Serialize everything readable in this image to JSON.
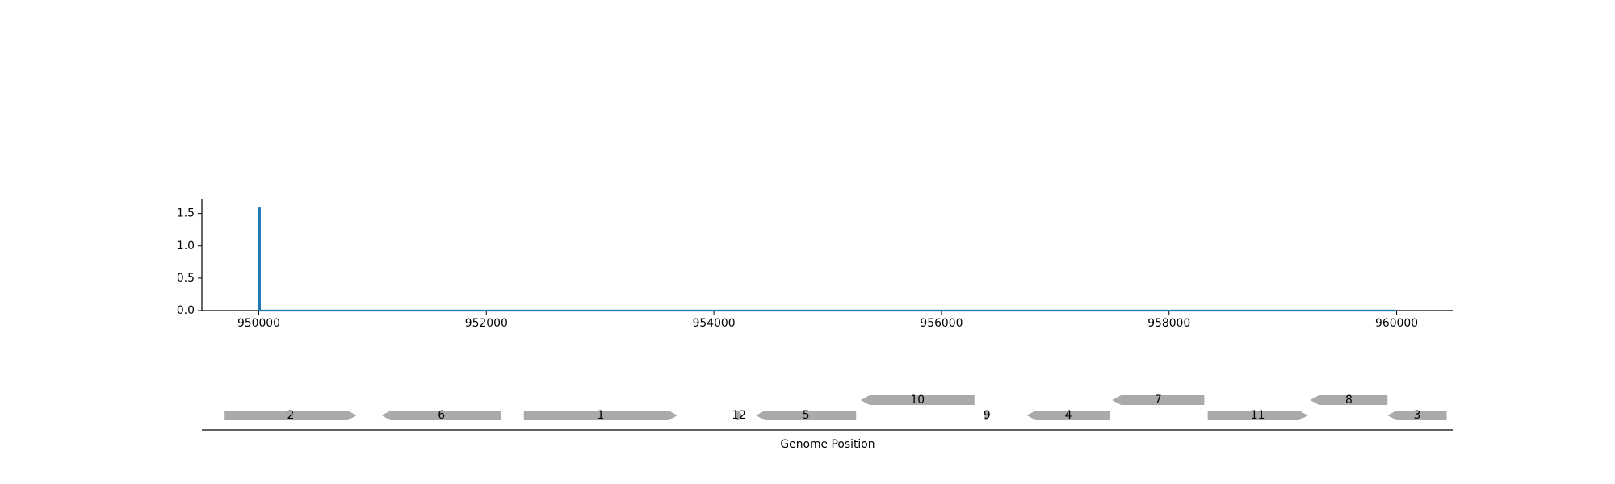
{
  "chart_data": [
    {
      "type": "line",
      "title": "",
      "xlabel": "",
      "ylabel": "",
      "xlim": [
        949500,
        960500
      ],
      "ylim": [
        0,
        1.72
      ],
      "xticks": [
        950000,
        952000,
        954000,
        956000,
        958000,
        960000
      ],
      "yticks": [
        0.0,
        0.5,
        1.0,
        1.5
      ],
      "xtick_labels": [
        "950000",
        "952000",
        "954000",
        "956000",
        "958000",
        "960000"
      ],
      "ytick_labels": [
        "0.0",
        "0.5",
        "1.0",
        "1.5"
      ],
      "grid": false,
      "series": [
        {
          "color": "#1f77b4",
          "points": [
            [
              950000,
              0
            ],
            [
              950000,
              1.58
            ],
            [
              950010,
              1.58
            ],
            [
              950010,
              0
            ],
            [
              960000,
              0
            ]
          ]
        }
      ]
    },
    {
      "type": "gene-track",
      "xlabel": "Genome Position",
      "xlim": [
        949500,
        960500
      ],
      "feature_color": "#aaaaaa",
      "features": [
        {
          "label": "2",
          "start": 949700,
          "end": 950860,
          "strand": 1,
          "level": 0
        },
        {
          "label": "6",
          "start": 951080,
          "end": 952130,
          "strand": -1,
          "level": 0
        },
        {
          "label": "1",
          "start": 952330,
          "end": 953680,
          "strand": 1,
          "level": 0
        },
        {
          "label": "12",
          "start": 954190,
          "end": 954250,
          "strand": 1,
          "level": 0
        },
        {
          "label": "5",
          "start": 954370,
          "end": 955250,
          "strand": -1,
          "level": 0
        },
        {
          "label": "10",
          "start": 955290,
          "end": 956290,
          "strand": -1,
          "level": 1
        },
        {
          "label": "9",
          "start": 956380,
          "end": 956420,
          "strand": 1,
          "level": 0
        },
        {
          "label": "4",
          "start": 956750,
          "end": 957480,
          "strand": -1,
          "level": 0
        },
        {
          "label": "7",
          "start": 957500,
          "end": 958310,
          "strand": -1,
          "level": 1
        },
        {
          "label": "11",
          "start": 958340,
          "end": 959220,
          "strand": 1,
          "level": 0
        },
        {
          "label": "8",
          "start": 959240,
          "end": 959920,
          "strand": -1,
          "level": 1
        },
        {
          "label": "3",
          "start": 959920,
          "end": 960440,
          "strand": -1,
          "level": 0
        }
      ]
    }
  ]
}
